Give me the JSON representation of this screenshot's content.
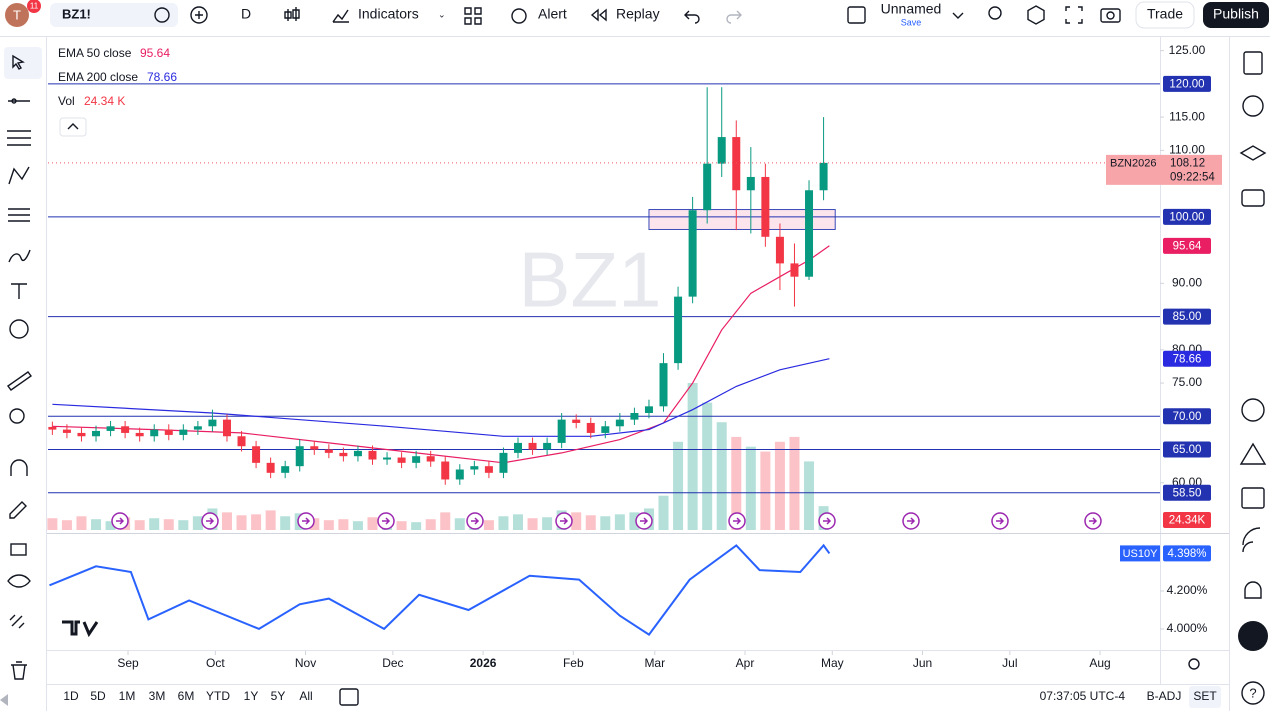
{
  "toolbar": {
    "avatar": "T",
    "badge": "11",
    "symbol": "BZ1!",
    "interval": "D",
    "indicators": "Indicators",
    "alert": "Alert",
    "replay": "Replay",
    "layout_name": "Unnamed",
    "save": "Save",
    "trade": "Trade",
    "publish": "Publish"
  },
  "bottom_bar": {
    "ranges": [
      "1D",
      "5D",
      "1M",
      "3M",
      "6M",
      "YTD",
      "1Y",
      "5Y",
      "All"
    ],
    "time": "07:37:05 UTC-4",
    "adj": "B-ADJ",
    "session": "SET"
  },
  "chart_data": [
    {
      "type": "candlestick",
      "watermark": "BZ1",
      "symbol_label": "BZN2026",
      "countdown": "09:22:54",
      "up_color": "#089981",
      "down_color": "#f23645",
      "x": [
        5,
        10,
        15,
        20,
        25,
        30,
        35,
        40,
        45,
        50,
        55,
        60,
        65,
        70,
        75,
        80,
        85,
        90,
        95,
        100,
        105,
        110,
        115,
        120,
        125,
        130,
        135,
        140,
        145,
        150,
        155,
        160,
        165,
        170,
        175,
        180,
        185,
        190,
        195,
        200,
        205,
        210,
        215,
        220,
        225,
        230,
        235,
        240,
        245,
        250,
        255,
        260,
        265,
        270
      ],
      "open": [
        68.4,
        68,
        67.5,
        67,
        67.8,
        68.5,
        67.5,
        67,
        68,
        67.2,
        68,
        68.5,
        69.5,
        67,
        65.5,
        63,
        61.5,
        62.5,
        65.5,
        65,
        64.5,
        64,
        64.8,
        63.5,
        63.8,
        63,
        64,
        63.2,
        60.5,
        62,
        62.5,
        61.5,
        64.5,
        66,
        65,
        66,
        69.5,
        69,
        67.5,
        68.5,
        69.5,
        70.5,
        71.5,
        78,
        88,
        101,
        108,
        112,
        104,
        106,
        97,
        93,
        91,
        104
      ],
      "high": [
        69.2,
        68.8,
        68.3,
        68.6,
        69.3,
        69.3,
        68.3,
        68.8,
        68.8,
        68.8,
        69.3,
        71,
        70.3,
        67.8,
        66.3,
        63.8,
        63.3,
        66.6,
        66.3,
        65.8,
        65.3,
        65.6,
        65.6,
        64.6,
        64.6,
        64.8,
        64.8,
        64,
        62.8,
        63.3,
        63.3,
        65.3,
        66.8,
        66.8,
        66.8,
        70.5,
        70.3,
        69.8,
        69.3,
        70.5,
        71.3,
        72.5,
        79.5,
        89.5,
        103,
        119.5,
        119.5,
        114.5,
        110.5,
        108,
        99,
        96,
        105.5,
        115
      ],
      "low": [
        67.2,
        66.7,
        66.2,
        66.2,
        67,
        66.7,
        66.2,
        66.2,
        66.4,
        66.4,
        67.2,
        67.7,
        66.2,
        64.7,
        62.2,
        60.7,
        60.7,
        61.7,
        64.2,
        63.7,
        63.2,
        63.2,
        62.7,
        62.7,
        62.2,
        62.2,
        62.4,
        59.7,
        59.7,
        61.2,
        60.7,
        60.7,
        63.7,
        64.2,
        64.2,
        65.2,
        68.2,
        66.7,
        66.7,
        67.7,
        68.7,
        69.7,
        70.7,
        77,
        87,
        99,
        106,
        98,
        97.5,
        95.5,
        89,
        86.5,
        90.5,
        102.5
      ],
      "close": [
        68,
        67.5,
        67,
        67.8,
        68.5,
        67.5,
        67,
        68,
        67.2,
        68,
        68.5,
        69.5,
        67,
        65.5,
        63,
        61.5,
        62.5,
        65.5,
        65,
        64.5,
        64,
        64.8,
        63.5,
        63.8,
        63,
        64,
        63.2,
        60.5,
        62,
        62.5,
        61.5,
        64.5,
        66,
        65,
        66,
        69.5,
        69,
        67.5,
        68.5,
        69.5,
        70.5,
        71.5,
        78,
        88,
        101,
        108,
        112,
        104,
        106,
        97,
        93,
        91,
        104,
        108.12
      ],
      "xlim": [
        3.5,
        385.6
      ],
      "xticks": [
        {
          "value": 31,
          "label": "Sep"
        },
        {
          "value": 61,
          "label": "Oct"
        },
        {
          "value": 92,
          "label": "Nov"
        },
        {
          "value": 122,
          "label": "Dec"
        },
        {
          "value": 153,
          "label": "2026"
        },
        {
          "value": 184,
          "label": "Feb"
        },
        {
          "value": 212,
          "label": "Mar"
        },
        {
          "value": 243,
          "label": "Apr"
        },
        {
          "value": 273,
          "label": "May"
        },
        {
          "value": 304,
          "label": "Jun"
        },
        {
          "value": 334,
          "label": "Jul"
        },
        {
          "value": 365,
          "label": "Aug"
        }
      ],
      "ylim": [
        52.9,
        126.6
      ],
      "yticks": [
        {
          "value": 125,
          "label": "125.00"
        },
        {
          "value": 115,
          "label": "115.00"
        },
        {
          "value": 110,
          "label": "110.00"
        },
        {
          "value": 90,
          "label": "90.00"
        },
        {
          "value": 80,
          "label": "80.00"
        },
        {
          "value": 75,
          "label": "75.00"
        },
        {
          "value": 60,
          "label": "60.00"
        }
      ],
      "overlays": [
        {
          "name": "EMA 50 close",
          "color": "#e91e63",
          "x": [
            5,
            40,
            70,
            100,
            130,
            160,
            180,
            200,
            215,
            225,
            235,
            245,
            255,
            265,
            272
          ],
          "values": [
            68.5,
            68,
            67.5,
            66,
            64.5,
            63,
            64.5,
            66.5,
            69,
            75,
            83,
            88.5,
            91,
            93.5,
            95.64
          ]
        },
        {
          "name": "EMA 200 close",
          "color": "#2a2ae0",
          "x": [
            5,
            60,
            120,
            160,
            190,
            210,
            225,
            240,
            255,
            272
          ],
          "values": [
            71.8,
            70.5,
            68.5,
            67,
            67,
            68,
            71,
            74.5,
            77,
            78.66
          ]
        }
      ],
      "volume": {
        "name": "Vol",
        "legend_label": "24.34 K",
        "axis_label": "24.34K",
        "ylim": [
          0,
          500
        ],
        "values": [
          12,
          10,
          14,
          11,
          9,
          13,
          10,
          12,
          11,
          10,
          14,
          22,
          18,
          15,
          16,
          20,
          14,
          17,
          12,
          10,
          11,
          9,
          13,
          10,
          9,
          8,
          11,
          18,
          12,
          8,
          10,
          14,
          16,
          12,
          13,
          20,
          18,
          15,
          14,
          16,
          18,
          22,
          35,
          90,
          150,
          130,
          110,
          95,
          85,
          80,
          90,
          95,
          70,
          24.34
        ]
      },
      "levels": [
        {
          "value": 120,
          "label": "120.00"
        },
        {
          "value": 100,
          "label": "100.00"
        },
        {
          "value": 85,
          "label": "85.00"
        },
        {
          "value": 70,
          "label": "70.00"
        },
        {
          "value": 65,
          "label": "65.00"
        },
        {
          "value": 58.5,
          "label": "58.50"
        }
      ],
      "level_color": "#2232b0",
      "zone": {
        "x": [
          210,
          274
        ],
        "y": [
          98.1,
          101.1
        ]
      }
    },
    {
      "type": "line",
      "name": "US10Y",
      "badge_label": "4.398%",
      "color": "#2962ff",
      "x": [
        4,
        20,
        32,
        38,
        52,
        76,
        90,
        100,
        119,
        131,
        148,
        169,
        186,
        200,
        210,
        224,
        240,
        248,
        262,
        270,
        272
      ],
      "values": [
        4.23,
        4.33,
        4.3,
        4.05,
        4.15,
        4.0,
        4.13,
        4.16,
        4.0,
        4.18,
        4.1,
        4.28,
        4.26,
        4.07,
        3.97,
        4.26,
        4.44,
        4.31,
        4.3,
        4.44,
        4.398
      ],
      "xlim": [
        3.5,
        385.6
      ],
      "ylim": [
        3.889,
        4.495
      ],
      "yticks": [
        {
          "value": 4.2,
          "label": "4.200%"
        },
        {
          "value": 4.0,
          "label": "4.000%"
        }
      ]
    }
  ]
}
